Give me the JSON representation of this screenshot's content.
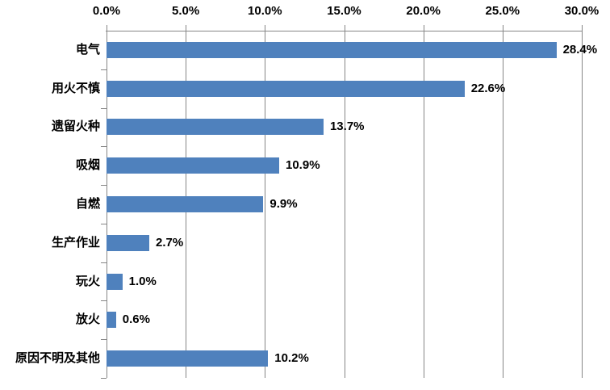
{
  "chart_data": {
    "type": "bar",
    "orientation": "horizontal",
    "title": "",
    "categories": [
      "电气",
      "用火不慎",
      "遗留火种",
      "吸烟",
      "自燃",
      "生产作业",
      "玩火",
      "放火",
      "原因不明及其他"
    ],
    "values": [
      28.4,
      22.6,
      13.7,
      10.9,
      9.9,
      2.7,
      1.0,
      0.6,
      10.2
    ],
    "value_labels": [
      "28.4%",
      "22.6%",
      "13.7%",
      "10.9%",
      "9.9%",
      "2.7%",
      "1.0%",
      "0.6%",
      "10.2%"
    ],
    "x_axis": {
      "position": "top",
      "min": 0,
      "max": 30,
      "tick_labels": [
        "0.0%",
        "5.0%",
        "10.0%",
        "15.0%",
        "20.0%",
        "25.0%",
        "30.0%"
      ]
    },
    "grid": true,
    "legend": "none",
    "colors": {
      "bar": "#4F81BD",
      "gridline": "#868686",
      "text": "#000000",
      "background": "#FFFFFF"
    }
  }
}
